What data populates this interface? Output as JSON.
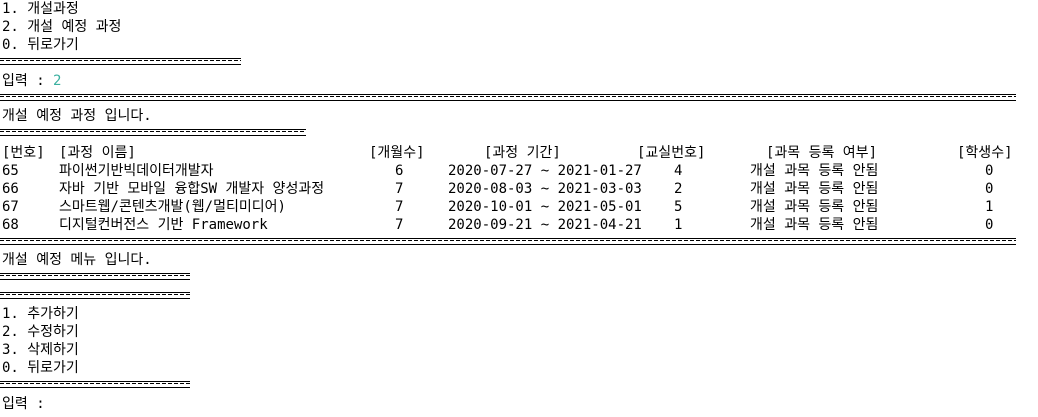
{
  "main_menu": {
    "items": [
      "1. 개설과정",
      "2. 개설 예정 과정",
      "0. 뒤로가기"
    ]
  },
  "input1": {
    "label": "입력 : ",
    "value": "2"
  },
  "section_title": "개설 예정 과정 입니다.",
  "table": {
    "headers": [
      "[번호]",
      "[과정 이름]",
      "[개월수]",
      "[과정 기간]",
      "[교실번호]",
      "[과목 등록 여부]",
      "[학생수]"
    ],
    "rows": [
      [
        "65",
        "파이썬기반빅데이터개발자",
        "6",
        "2020-07-27 ~ 2021-01-27",
        "4",
        "개설 과목 등록 안됨",
        "0"
      ],
      [
        "66",
        "자바 기반 모바일 융합SW 개발자 양성과정",
        "7",
        "2020-08-03 ~ 2021-03-03",
        "2",
        "개설 과목 등록 안됨",
        "0"
      ],
      [
        "67",
        "스마트웹/콘텐츠개발(웹/멀티미디어)",
        "7",
        "2020-10-01 ~ 2021-05-01",
        "5",
        "개설 과목 등록 안됨",
        "1"
      ],
      [
        "68",
        "디지털컨버전스 기반 Framework",
        "7",
        "2020-09-21 ~ 2021-04-21",
        "1",
        "개설 과목 등록 안됨",
        "0"
      ]
    ]
  },
  "submenu": {
    "title": "개설 예정 메뉴 입니다.",
    "items": [
      "1. 추가하기",
      "2. 수정하기",
      "3. 삭제하기",
      "0. 뒤로가기"
    ]
  },
  "input2": {
    "label": "입력 : ",
    "value": ""
  }
}
